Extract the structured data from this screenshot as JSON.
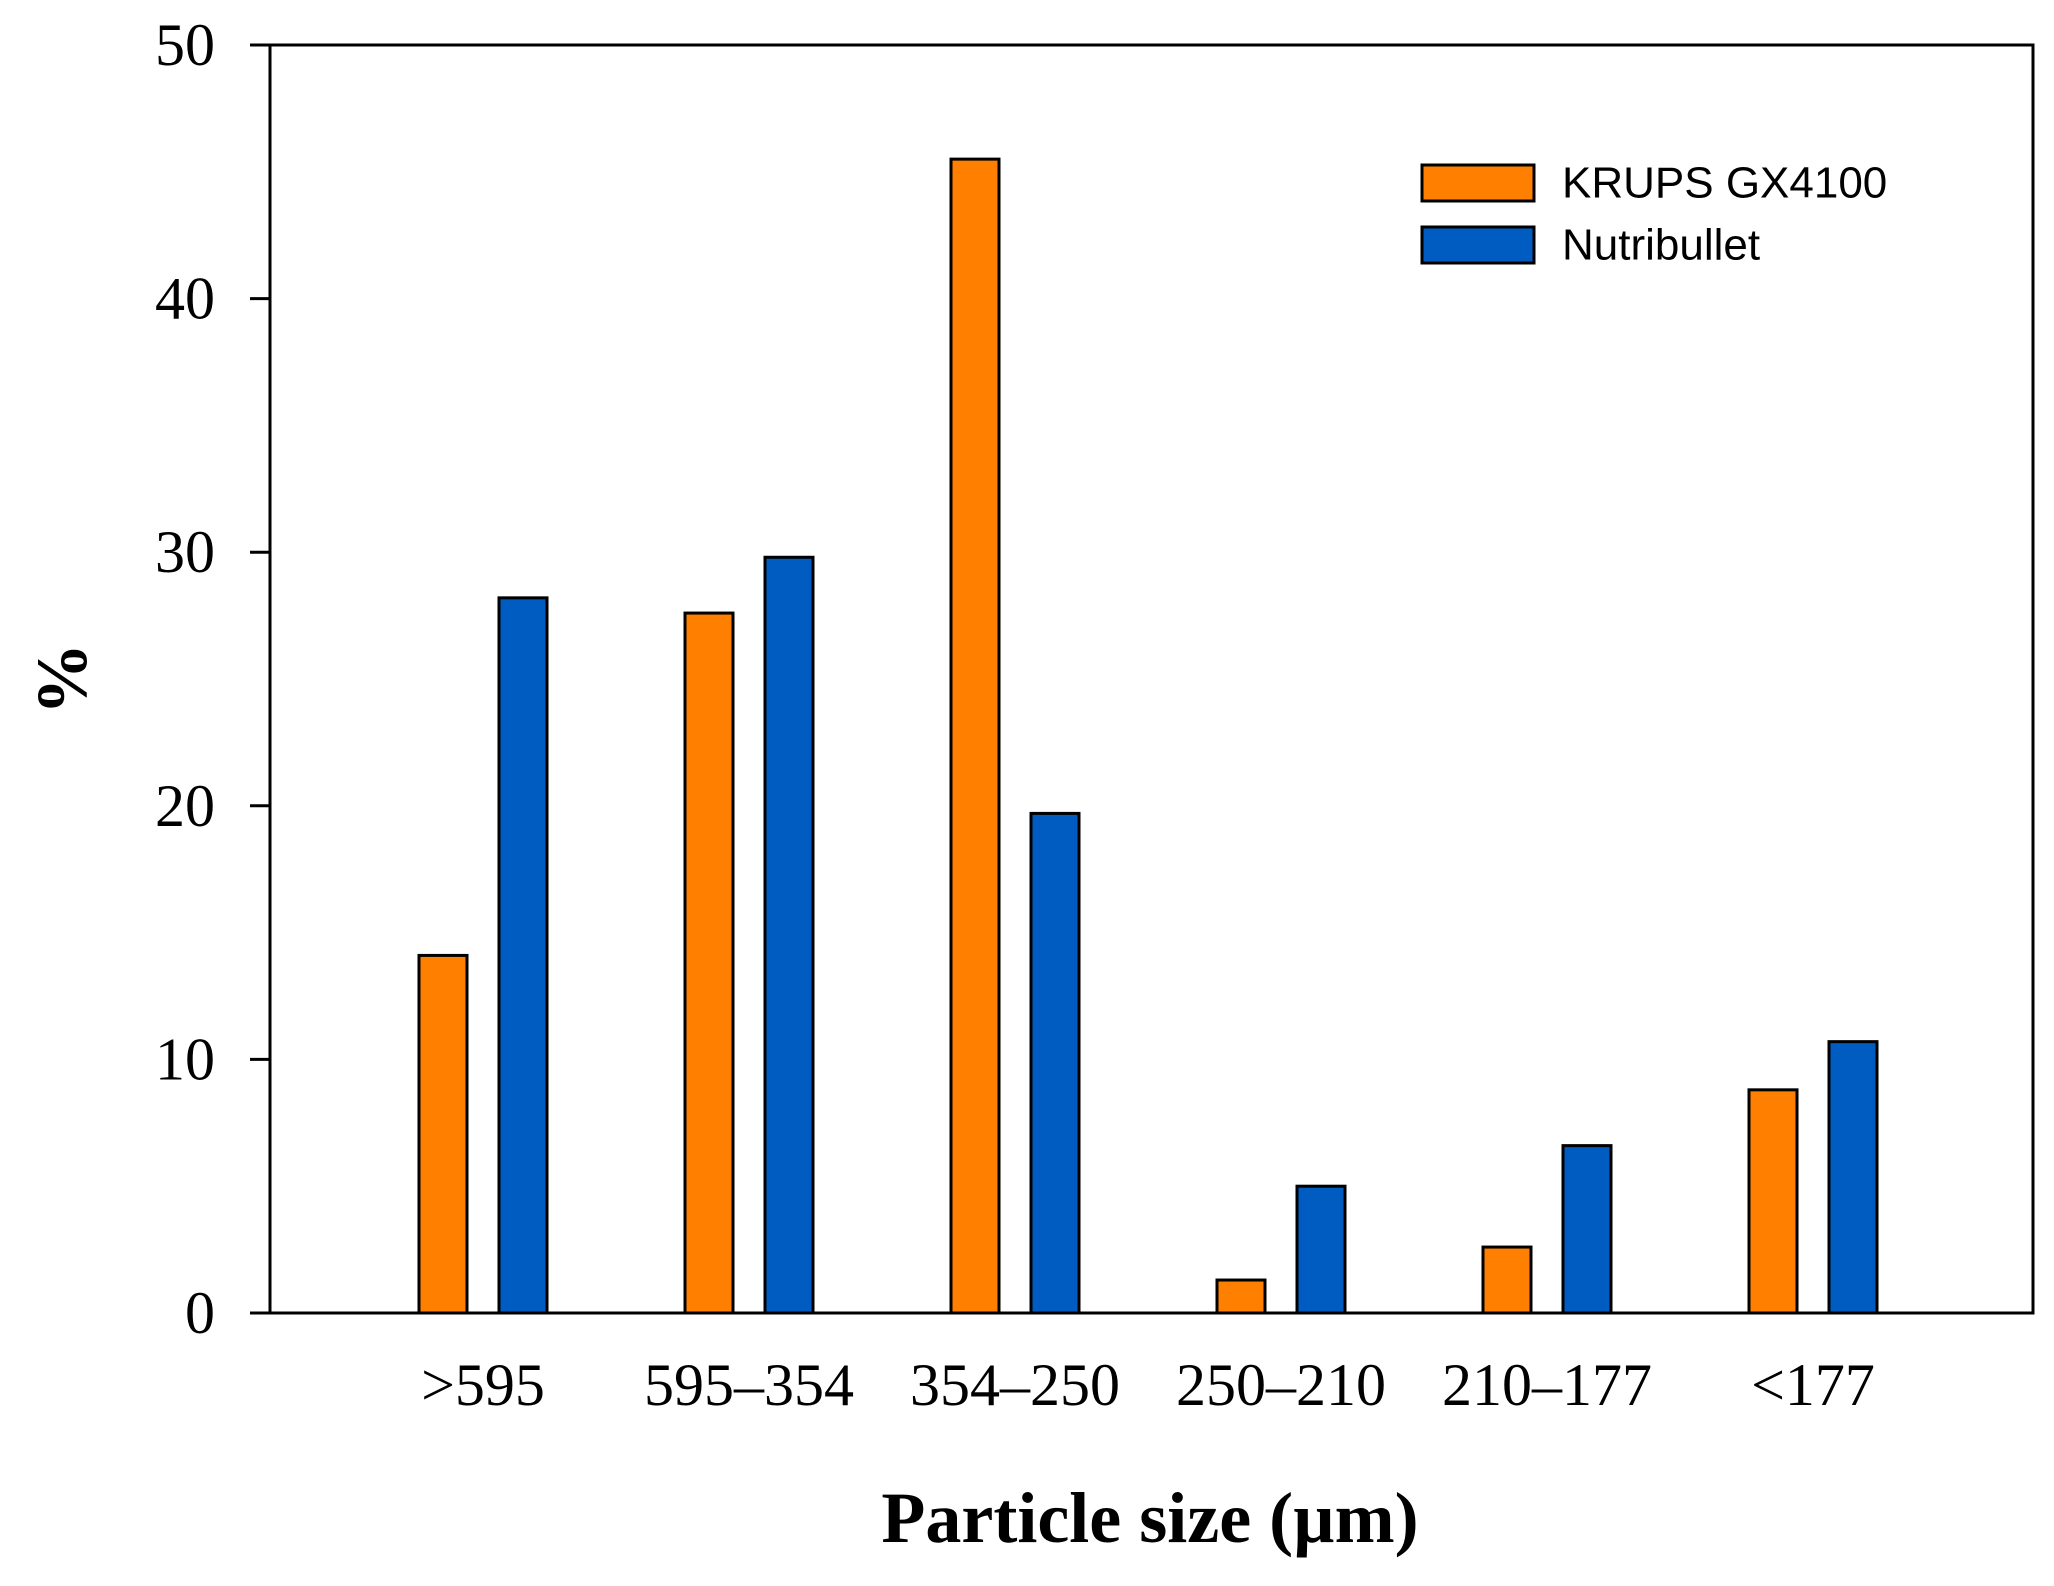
{
  "chart_data": {
    "type": "bar",
    "title": "",
    "xlabel": "Particle size (µm)",
    "ylabel": "%",
    "ylim": [
      0,
      50
    ],
    "yticks": [
      "0",
      "10",
      "20",
      "30",
      "40",
      "50"
    ],
    "categories": [
      ">595",
      "595–354",
      "354–250",
      "250–210",
      "210–177",
      "<177"
    ],
    "series": [
      {
        "name": "KRUPS GX4100",
        "color": "#FF7F00",
        "values": [
          14.1,
          27.6,
          45.5,
          1.3,
          2.6,
          8.8
        ]
      },
      {
        "name": "Nutribullet",
        "color": "#005CC1",
        "values": [
          28.2,
          29.8,
          19.7,
          5.0,
          6.6,
          10.7
        ]
      }
    ],
    "grid": false,
    "legend_position": "top-right"
  }
}
